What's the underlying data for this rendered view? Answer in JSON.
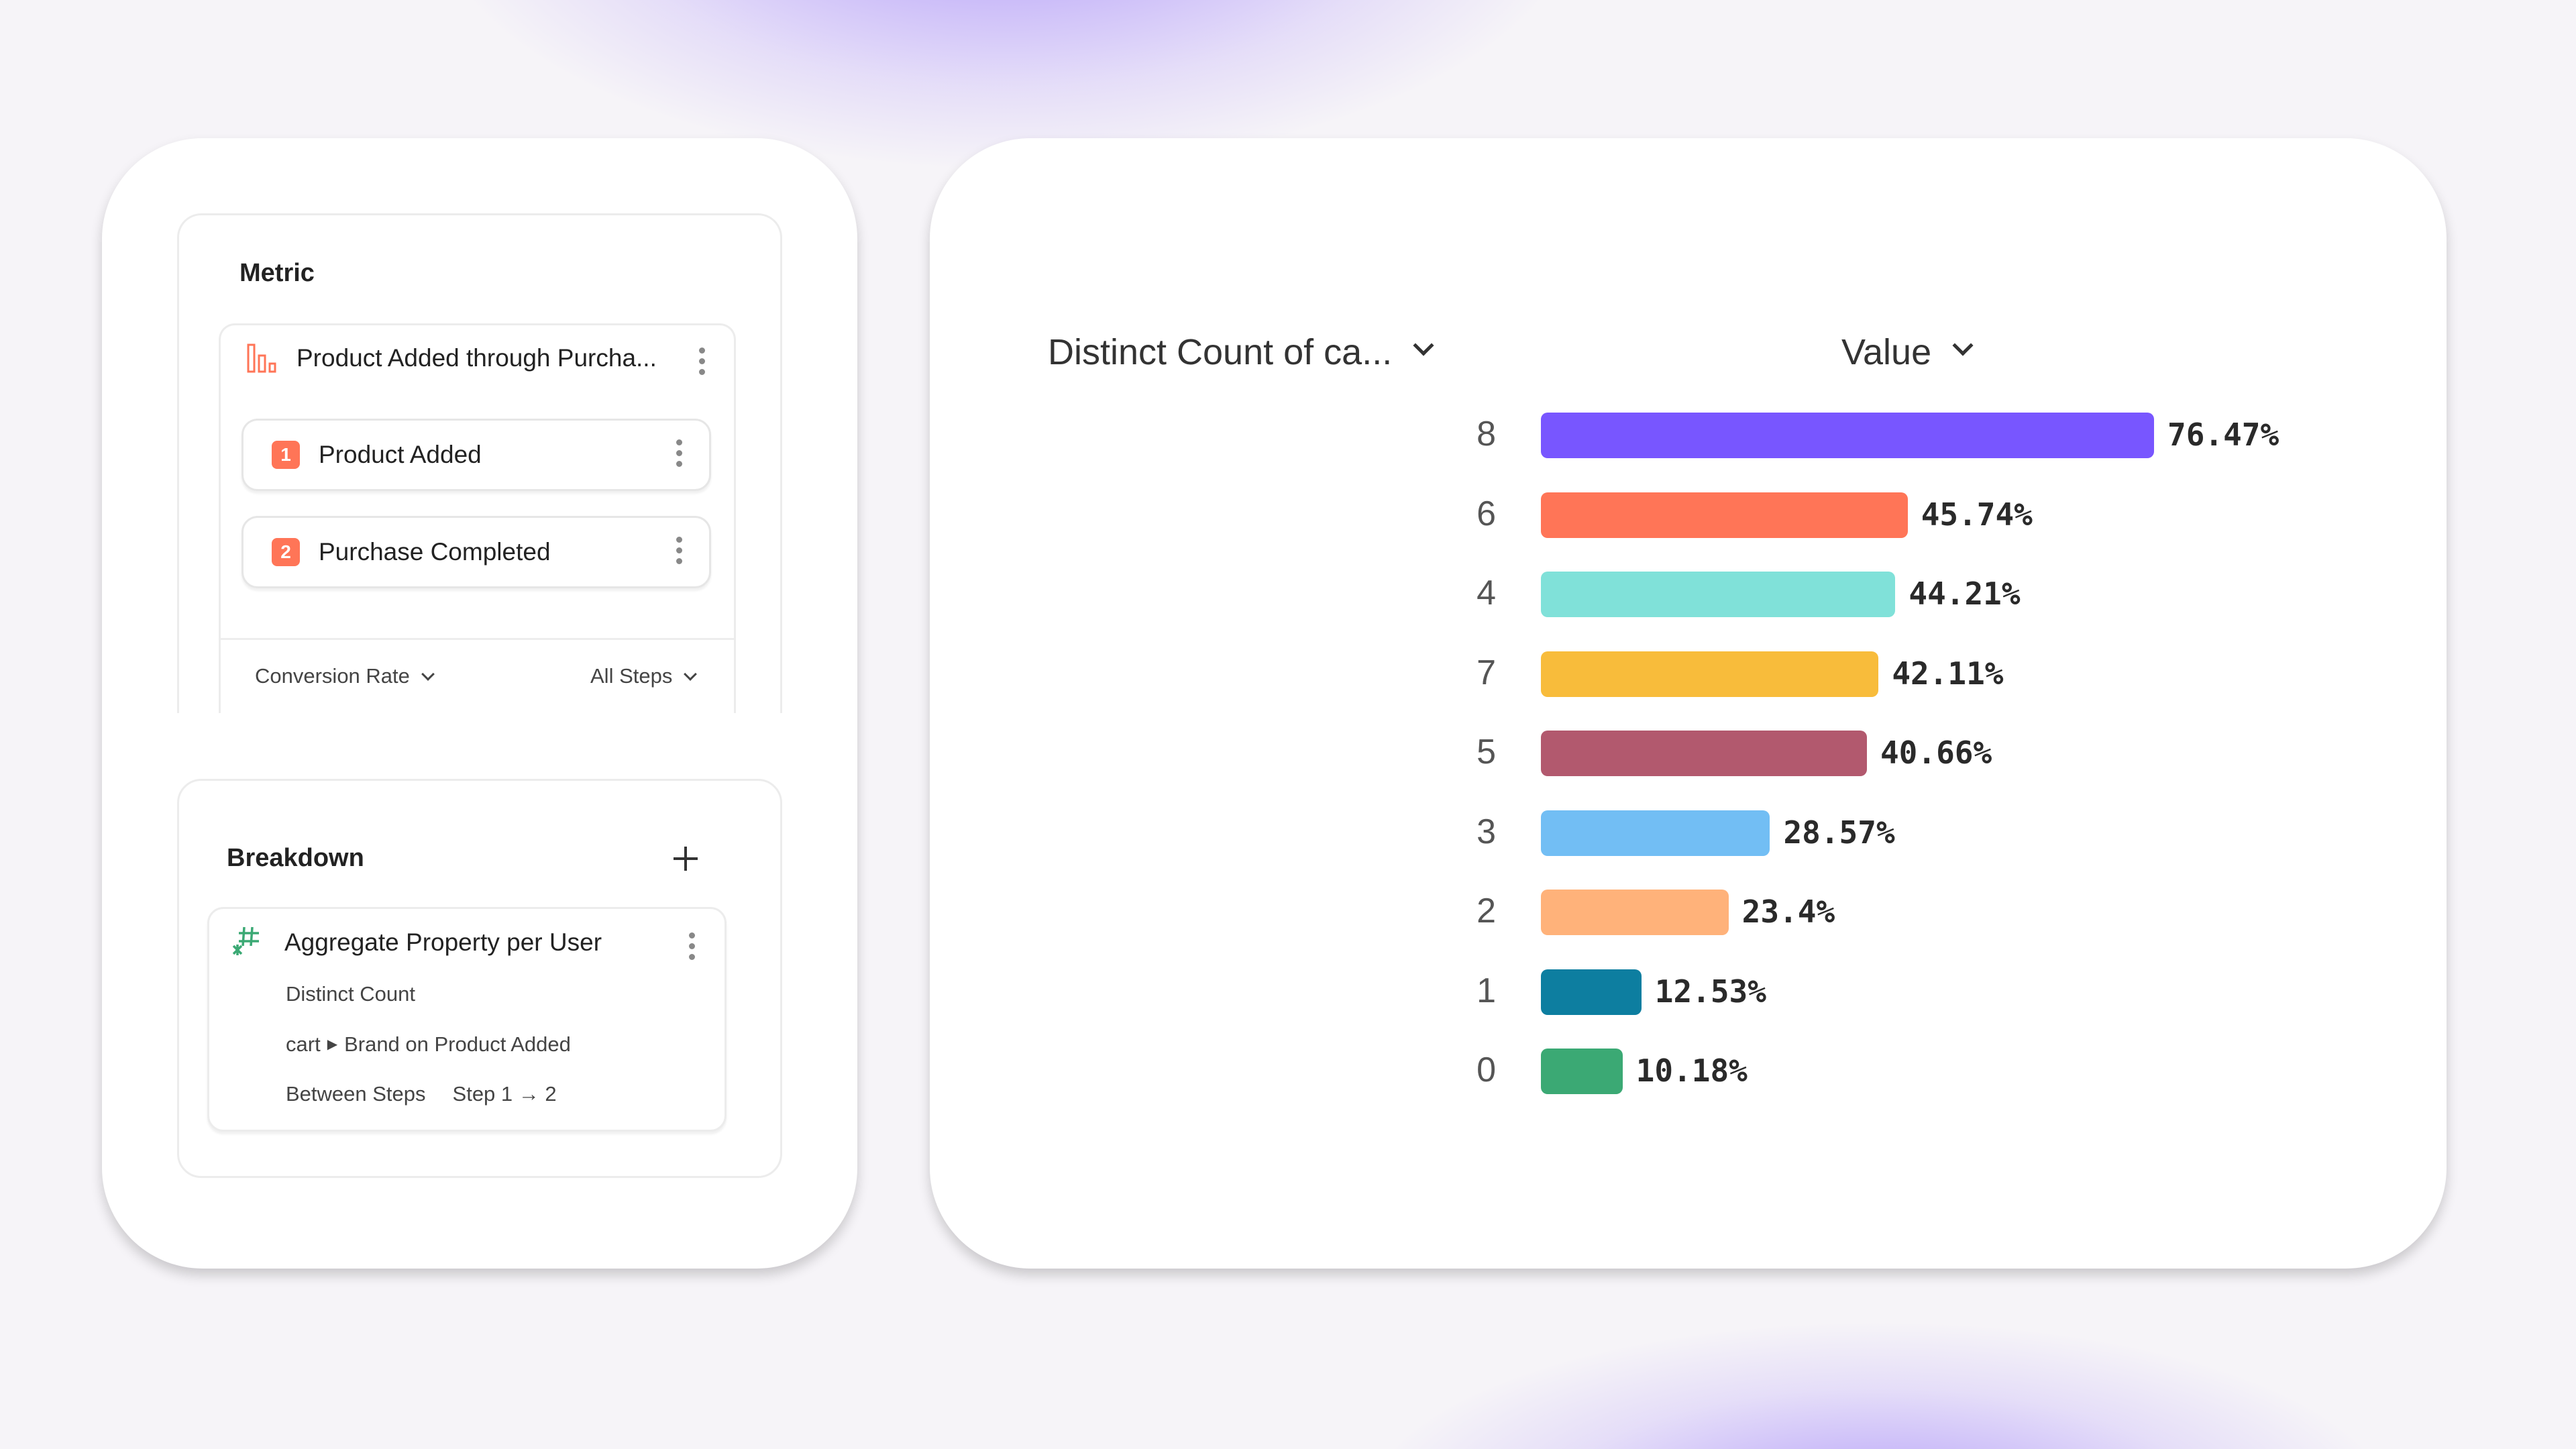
{
  "metric": {
    "title": "Metric",
    "funnel_name": "Product Added through Purcha...",
    "funnel_icon": "funnel-chart-icon",
    "steps": [
      {
        "number": "1",
        "label": "Product Added"
      },
      {
        "number": "2",
        "label": "Purchase Completed"
      }
    ],
    "measure": "Conversion Rate",
    "steps_scope": "All Steps"
  },
  "breakdown": {
    "title": "Breakdown",
    "add_icon": "plus-icon",
    "item": {
      "icon": "hash-icon",
      "title": "Aggregate Property per User",
      "aggregation": "Distinct Count",
      "property_prefix": "cart",
      "property": "Brand on Product Added",
      "window_label": "Between Steps",
      "window_value": "Step 1 → 2"
    }
  },
  "colors": {
    "accent": "#7856ff",
    "badge": "#ff7557",
    "hash": "#3ba974"
  },
  "chart_data": {
    "type": "bar",
    "orientation": "horizontal",
    "category_header": "Distinct Count of ca...",
    "value_header": "Value",
    "categories": [
      "8",
      "6",
      "4",
      "7",
      "5",
      "3",
      "2",
      "1",
      "0"
    ],
    "values": [
      76.47,
      45.74,
      44.21,
      42.11,
      40.66,
      28.57,
      23.4,
      12.53,
      10.18
    ],
    "labels": [
      "76.47%",
      "45.74%",
      "44.21%",
      "42.11%",
      "40.66%",
      "28.57%",
      "23.4%",
      "12.53%",
      "10.18%"
    ],
    "colors": [
      "#7856ff",
      "#ff7557",
      "#80e1d9",
      "#f8bc3b",
      "#b2596e",
      "#72bef4",
      "#ffb27a",
      "#0d7ea0",
      "#3ba974"
    ],
    "grid": false
  }
}
